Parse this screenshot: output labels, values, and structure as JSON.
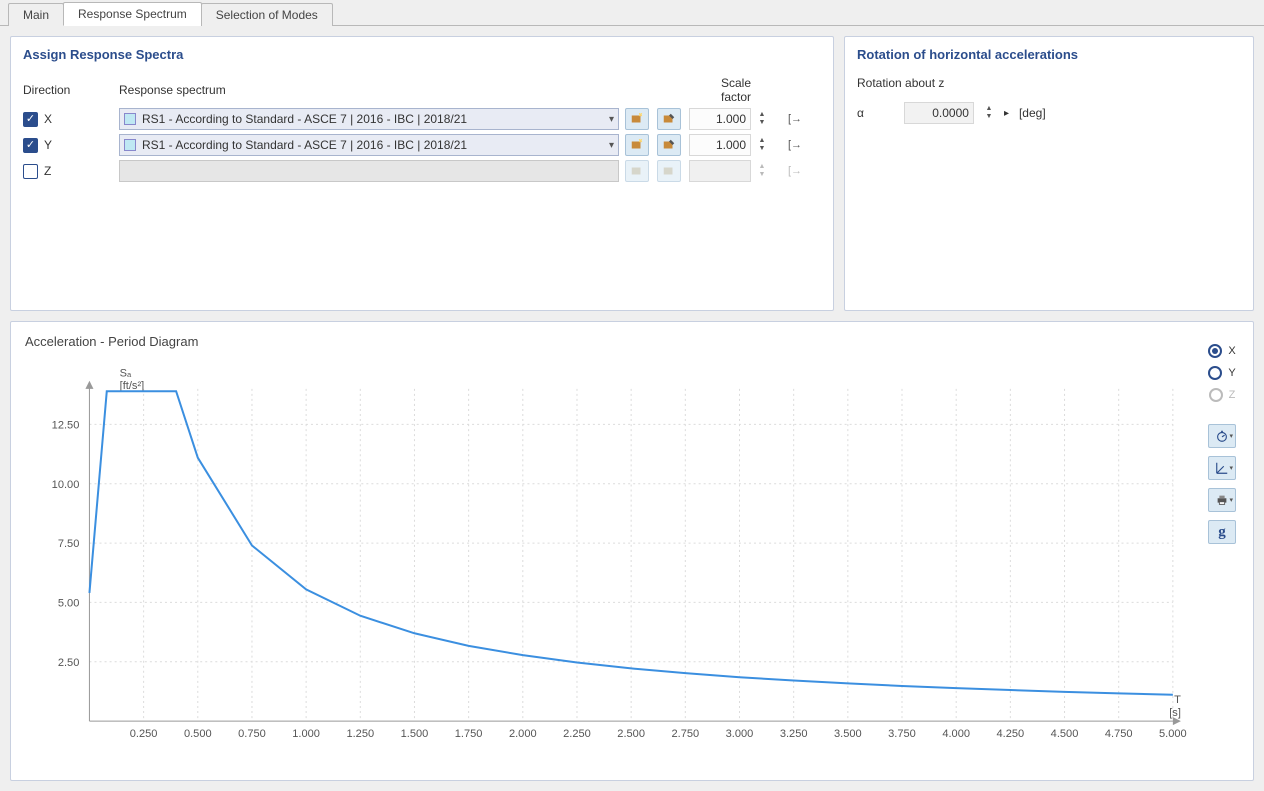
{
  "tabs": {
    "main": "Main",
    "spectrum": "Response Spectrum",
    "modes": "Selection of Modes",
    "active": 1
  },
  "left_panel": {
    "title": "Assign Response Spectra",
    "headers": {
      "direction": "Direction",
      "spectrum": "Response spectrum",
      "scale": "Scale factor"
    },
    "rows": [
      {
        "checked": true,
        "label": "X",
        "spectrum": "RS1 - According to Standard - ASCE 7 | 2016 - IBC | 2018/21",
        "scale": "1.000",
        "enabled": true
      },
      {
        "checked": true,
        "label": "Y",
        "spectrum": "RS1 - According to Standard - ASCE 7 | 2016 - IBC | 2018/21",
        "scale": "1.000",
        "enabled": true
      },
      {
        "checked": false,
        "label": "Z",
        "spectrum": "",
        "scale": "",
        "enabled": false
      }
    ]
  },
  "right_panel": {
    "title": "Rotation of horizontal accelerations",
    "sublabel": "Rotation about z",
    "alpha_label": "α",
    "alpha_value": "0.0000",
    "unit": "[deg]"
  },
  "chart": {
    "title": "Acceleration - Period Diagram",
    "y_label": "Sₐ",
    "y_unit": "[ft/s²]",
    "x_label": "T",
    "x_unit": "[s]",
    "type": "line",
    "line_color": "#3b8fe0",
    "line_width": 2,
    "grid_color": "#dcdcdc",
    "axis_color": "#999",
    "background": "#ffffff",
    "xlim": [
      0,
      5.0
    ],
    "ylim": [
      0,
      14.0
    ],
    "xticks": [
      0.25,
      0.5,
      0.75,
      1.0,
      1.25,
      1.5,
      1.75,
      2.0,
      2.25,
      2.5,
      2.75,
      3.0,
      3.25,
      3.5,
      3.75,
      4.0,
      4.25,
      4.5,
      4.75,
      5.0
    ],
    "yticks": [
      2.5,
      5.0,
      7.5,
      10.0,
      12.5
    ],
    "series_x": [
      0,
      0.08,
      0.1,
      0.4,
      0.5,
      0.75,
      1.0,
      1.25,
      1.5,
      1.75,
      2.0,
      2.25,
      2.5,
      2.75,
      3.0,
      3.25,
      3.5,
      3.75,
      4.0,
      4.25,
      4.5,
      4.75,
      5.0
    ],
    "series_y": [
      5.4,
      13.9,
      13.9,
      13.9,
      11.1,
      7.4,
      5.55,
      4.44,
      3.7,
      3.17,
      2.78,
      2.47,
      2.22,
      2.02,
      1.85,
      1.71,
      1.59,
      1.48,
      1.39,
      1.31,
      1.23,
      1.17,
      1.11
    ]
  },
  "radio": {
    "x": "X",
    "y": "Y",
    "z": "Z",
    "selected": "x",
    "z_disabled": true
  }
}
